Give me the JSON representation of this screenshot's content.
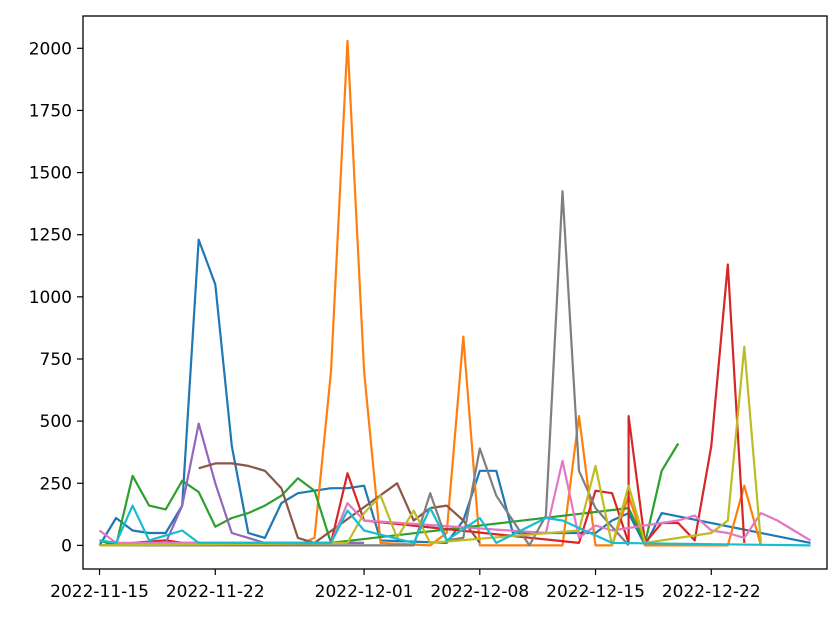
{
  "chart_data": {
    "type": "line",
    "title": "",
    "xlabel": "",
    "ylabel": "",
    "x_axis_type": "date",
    "xlim": [
      "2022-11-14",
      "2022-12-29"
    ],
    "ylim": [
      -95,
      2130
    ],
    "grid": false,
    "legend": "none",
    "x_ticks": [
      "2022-11-15",
      "2022-11-22",
      "2022-12-01",
      "2022-12-08",
      "2022-12-15",
      "2022-12-22"
    ],
    "y_ticks": [
      0,
      250,
      500,
      750,
      1000,
      1250,
      1500,
      1750,
      2000
    ],
    "series": [
      {
        "color": "#1f77b4",
        "points": [
          [
            "2022-11-15",
            0
          ],
          [
            "2022-11-16",
            110
          ],
          [
            "2022-11-17",
            60
          ],
          [
            "2022-11-18",
            50
          ],
          [
            "2022-11-19",
            50
          ],
          [
            "2022-11-20",
            160
          ],
          [
            "2022-11-21",
            1230
          ],
          [
            "2022-11-22",
            1050
          ],
          [
            "2022-11-23",
            400
          ],
          [
            "2022-11-24",
            50
          ],
          [
            "2022-11-25",
            30
          ],
          [
            "2022-11-26",
            170
          ],
          [
            "2022-11-27",
            210
          ],
          [
            "2022-11-28",
            220
          ],
          [
            "2022-11-29",
            230
          ],
          [
            "2022-11-30",
            230
          ],
          [
            "2022-12-01",
            240
          ],
          [
            "2022-12-02",
            20
          ],
          [
            "2022-12-06",
            10
          ],
          [
            "2022-12-07",
            100
          ],
          [
            "2022-12-08",
            300
          ],
          [
            "2022-12-09",
            300
          ],
          [
            "2022-12-10",
            50
          ],
          [
            "2022-12-14",
            50
          ],
          [
            "2022-12-15",
            50
          ],
          [
            "2022-12-16",
            100
          ],
          [
            "2022-12-17",
            130
          ],
          [
            "2022-12-18",
            0
          ],
          [
            "2022-12-19",
            130
          ],
          [
            "2022-12-28",
            10
          ]
        ]
      },
      {
        "color": "#ff7f0e",
        "points": [
          [
            "2022-11-15",
            0
          ],
          [
            "2022-11-27",
            0
          ],
          [
            "2022-11-28",
            30
          ],
          [
            "2022-11-29",
            700
          ],
          [
            "2022-11-30",
            2030
          ],
          [
            "2022-12-01",
            700
          ],
          [
            "2022-12-02",
            10
          ],
          [
            "2022-12-05",
            0
          ],
          [
            "2022-12-06",
            50
          ],
          [
            "2022-12-07",
            840
          ],
          [
            "2022-12-08",
            0
          ],
          [
            "2022-12-13",
            0
          ],
          [
            "2022-12-14",
            520
          ],
          [
            "2022-12-15",
            0
          ],
          [
            "2022-12-16",
            0
          ],
          [
            "2022-12-17",
            200
          ],
          [
            "2022-12-18",
            0
          ],
          [
            "2022-12-23",
            0
          ],
          [
            "2022-12-24",
            240
          ],
          [
            "2022-12-25",
            0
          ]
        ]
      },
      {
        "color": "#2ca02c",
        "points": [
          [
            "2022-11-15",
            20
          ],
          [
            "2022-11-16",
            0
          ],
          [
            "2022-11-17",
            280
          ],
          [
            "2022-11-18",
            160
          ],
          [
            "2022-11-19",
            145
          ],
          [
            "2022-11-20",
            260
          ],
          [
            "2022-11-21",
            215
          ],
          [
            "2022-11-22",
            75
          ],
          [
            "2022-11-23",
            110
          ],
          [
            "2022-11-24",
            130
          ],
          [
            "2022-11-25",
            160
          ],
          [
            "2022-11-26",
            200
          ],
          [
            "2022-11-27",
            270
          ],
          [
            "2022-11-28",
            220
          ],
          [
            "2022-11-29",
            10
          ],
          [
            "2022-12-17",
            150
          ],
          [
            "2022-12-18",
            10
          ],
          [
            "2022-12-19",
            300
          ],
          [
            "2022-12-20",
            410
          ]
        ]
      },
      {
        "color": "#d62728",
        "points": [
          [
            "2022-11-15",
            0
          ],
          [
            "2022-11-19",
            20
          ],
          [
            "2022-11-20",
            10
          ],
          [
            "2022-11-29",
            10
          ],
          [
            "2022-11-30",
            290
          ],
          [
            "2022-12-01",
            100
          ],
          [
            "2022-12-14",
            10
          ],
          [
            "2022-12-15",
            220
          ],
          [
            "2022-12-16",
            210
          ],
          [
            "2022-12-17",
            10
          ],
          [
            "2022-12-17",
            520
          ],
          [
            "2022-12-18",
            10
          ],
          [
            "2022-12-19",
            90
          ],
          [
            "2022-12-20",
            90
          ],
          [
            "2022-12-21",
            20
          ],
          [
            "2022-12-22",
            400
          ],
          [
            "2022-12-23",
            1130
          ],
          [
            "2022-12-24",
            10
          ]
        ]
      },
      {
        "color": "#9467bd",
        "points": [
          [
            "2022-11-15",
            0
          ],
          [
            "2022-11-19",
            10
          ],
          [
            "2022-11-20",
            160
          ],
          [
            "2022-11-21",
            490
          ],
          [
            "2022-11-22",
            250
          ],
          [
            "2022-11-23",
            50
          ],
          [
            "2022-11-24",
            30
          ],
          [
            "2022-11-25",
            10
          ],
          [
            "2022-12-01",
            10
          ]
        ]
      },
      {
        "color": "#8c564b",
        "points": [
          [
            "2022-11-21",
            310
          ],
          [
            "2022-11-22",
            330
          ],
          [
            "2022-11-23",
            330
          ],
          [
            "2022-11-24",
            320
          ],
          [
            "2022-11-25",
            300
          ],
          [
            "2022-11-26",
            230
          ],
          [
            "2022-11-27",
            30
          ],
          [
            "2022-11-28",
            10
          ],
          [
            "2022-12-03",
            250
          ],
          [
            "2022-12-04",
            100
          ],
          [
            "2022-12-05",
            150
          ],
          [
            "2022-12-06",
            160
          ],
          [
            "2022-12-07",
            100
          ],
          [
            "2022-12-08",
            10
          ]
        ]
      },
      {
        "color": "#e377c2",
        "points": [
          [
            "2022-11-15",
            60
          ],
          [
            "2022-11-16",
            10
          ],
          [
            "2022-11-20",
            10
          ],
          [
            "2022-11-29",
            10
          ],
          [
            "2022-11-30",
            170
          ],
          [
            "2022-12-01",
            100
          ],
          [
            "2022-12-12",
            50
          ],
          [
            "2022-12-13",
            340
          ],
          [
            "2022-12-14",
            30
          ],
          [
            "2022-12-15",
            80
          ],
          [
            "2022-12-16",
            60
          ],
          [
            "2022-12-20",
            100
          ],
          [
            "2022-12-21",
            120
          ],
          [
            "2022-12-22",
            60
          ],
          [
            "2022-12-23",
            50
          ],
          [
            "2022-12-24",
            30
          ],
          [
            "2022-12-25",
            130
          ],
          [
            "2022-12-26",
            100
          ],
          [
            "2022-12-27",
            60
          ],
          [
            "2022-12-28",
            20
          ]
        ]
      },
      {
        "color": "#7f7f7f",
        "points": [
          [
            "2022-11-15",
            0
          ],
          [
            "2022-12-04",
            0
          ],
          [
            "2022-12-05",
            210
          ],
          [
            "2022-12-06",
            20
          ],
          [
            "2022-12-07",
            30
          ],
          [
            "2022-12-08",
            390
          ],
          [
            "2022-12-09",
            200
          ],
          [
            "2022-12-11",
            0
          ],
          [
            "2022-12-12",
            120
          ],
          [
            "2022-12-13",
            1425
          ],
          [
            "2022-12-14",
            300
          ],
          [
            "2022-12-15",
            150
          ],
          [
            "2022-12-17",
            0
          ]
        ]
      },
      {
        "color": "#bcbd22",
        "points": [
          [
            "2022-11-15",
            0
          ],
          [
            "2022-11-30",
            10
          ],
          [
            "2022-12-01",
            130
          ],
          [
            "2022-12-02",
            200
          ],
          [
            "2022-12-03",
            30
          ],
          [
            "2022-12-04",
            140
          ],
          [
            "2022-12-05",
            10
          ],
          [
            "2022-12-14",
            60
          ],
          [
            "2022-12-15",
            320
          ],
          [
            "2022-12-16",
            0
          ],
          [
            "2022-12-17",
            240
          ],
          [
            "2022-12-18",
            10
          ],
          [
            "2022-12-22",
            50
          ],
          [
            "2022-12-23",
            100
          ],
          [
            "2022-12-24",
            800
          ],
          [
            "2022-12-25",
            10
          ]
        ]
      },
      {
        "color": "#17becf",
        "points": [
          [
            "2022-11-15",
            20
          ],
          [
            "2022-11-16",
            10
          ],
          [
            "2022-11-17",
            160
          ],
          [
            "2022-11-18",
            20
          ],
          [
            "2022-11-19",
            40
          ],
          [
            "2022-11-20",
            60
          ],
          [
            "2022-11-21",
            10
          ],
          [
            "2022-11-29",
            10
          ],
          [
            "2022-11-30",
            140
          ],
          [
            "2022-12-01",
            60
          ],
          [
            "2022-12-04",
            10
          ],
          [
            "2022-12-05",
            150
          ],
          [
            "2022-12-06",
            20
          ],
          [
            "2022-12-08",
            110
          ],
          [
            "2022-12-09",
            10
          ],
          [
            "2022-12-12",
            110
          ],
          [
            "2022-12-13",
            100
          ],
          [
            "2022-12-14",
            70
          ],
          [
            "2022-12-15",
            40
          ],
          [
            "2022-12-16",
            10
          ],
          [
            "2022-12-28",
            0
          ]
        ]
      }
    ]
  }
}
